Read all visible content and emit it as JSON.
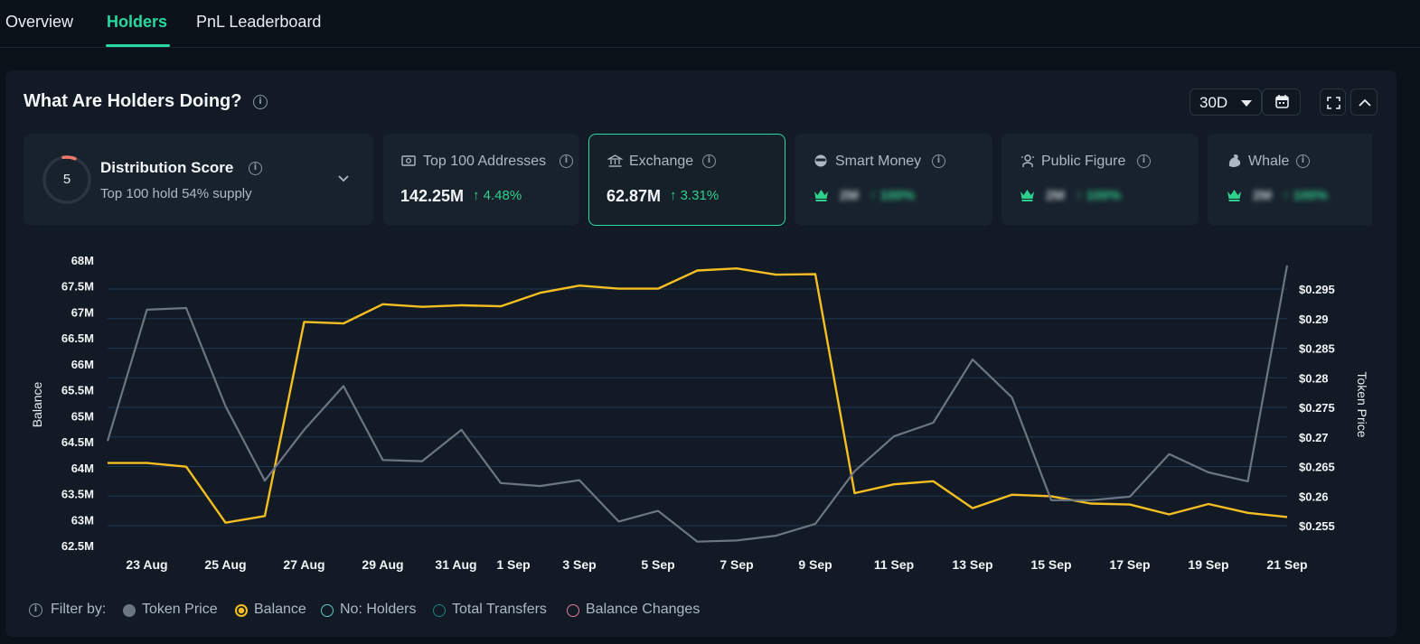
{
  "tabs": [
    {
      "label": "Overview",
      "active": false
    },
    {
      "label": "Holders",
      "active": true
    },
    {
      "label": "PnL Leaderboard",
      "active": false
    }
  ],
  "header": {
    "title": "What Are Holders Doing?",
    "range": "30D"
  },
  "distribution": {
    "score": "5",
    "title": "Distribution Score",
    "subtitle": "Top 100 hold 54% supply"
  },
  "cards": [
    {
      "label": "Top 100 Addresses",
      "value": "142.25M",
      "change": "4.48%",
      "icon": "money-icon"
    },
    {
      "label": "Exchange",
      "value": "62.87M",
      "change": "3.31%",
      "icon": "bank-icon",
      "selected": true
    },
    {
      "label": "Smart Money",
      "value": "2M",
      "change": "100%",
      "icon": "sunglasses-icon",
      "locked": true
    },
    {
      "label": "Public Figure",
      "value": "2M",
      "change": "100%",
      "icon": "figure-icon",
      "locked": true
    },
    {
      "label": "Whale",
      "value": "2M",
      "change": "100%",
      "icon": "whale-icon",
      "locked": true
    }
  ],
  "chart_data": {
    "type": "line",
    "x": [
      "22 Aug",
      "23 Aug",
      "24 Aug",
      "25 Aug",
      "26 Aug",
      "27 Aug",
      "28 Aug",
      "29 Aug",
      "30 Aug",
      "31 Aug",
      "1 Sep",
      "2 Sep",
      "3 Sep",
      "4 Sep",
      "5 Sep",
      "6 Sep",
      "7 Sep",
      "8 Sep",
      "9 Sep",
      "10 Sep",
      "11 Sep",
      "12 Sep",
      "13 Sep",
      "14 Sep",
      "15 Sep",
      "16 Sep",
      "17 Sep",
      "18 Sep",
      "19 Sep",
      "20 Sep",
      "21 Sep"
    ],
    "xticks": [
      "23 Aug",
      "25 Aug",
      "27 Aug",
      "29 Aug",
      "31 Aug",
      "1 Sep",
      "3 Sep",
      "5 Sep",
      "7 Sep",
      "9 Sep",
      "11 Sep",
      "13 Sep",
      "15 Sep",
      "17 Sep",
      "19 Sep",
      "21 Sep"
    ],
    "series": [
      {
        "name": "Balance",
        "axis": "left",
        "color": "#f5be22",
        "values": [
          64.09,
          64.09,
          64.02,
          62.94,
          63.07,
          66.81,
          66.78,
          67.15,
          67.1,
          67.13,
          67.11,
          67.37,
          67.51,
          67.45,
          67.45,
          67.8,
          67.84,
          67.72,
          67.73,
          63.51,
          63.68,
          63.74,
          63.22,
          63.48,
          63.45,
          63.31,
          63.29,
          63.1,
          63.3,
          63.13,
          63.05
        ]
      },
      {
        "name": "Token Price",
        "axis": "right",
        "color": "#6b7682",
        "values": [
          0.2693,
          0.2915,
          0.2918,
          0.2752,
          0.2626,
          0.2712,
          0.2786,
          0.2661,
          0.2659,
          0.2712,
          0.2622,
          0.2617,
          0.2627,
          0.2557,
          0.2575,
          0.2523,
          0.2525,
          0.2533,
          0.2553,
          0.2642,
          0.2701,
          0.2724,
          0.2831,
          0.2767,
          0.2593,
          0.2593,
          0.2599,
          0.2671,
          0.264,
          0.2625,
          0.299
        ]
      }
    ],
    "ylabel": "Balance",
    "y2label": "Token Price",
    "ylim": [
      62.5,
      68
    ],
    "y2lim": [
      0.2533,
      0.299
    ],
    "yticks": [
      "68M",
      "67.5M",
      "67M",
      "66.5M",
      "66M",
      "65.5M",
      "65M",
      "64.5M",
      "64M",
      "63.5M",
      "63M",
      "62.5M"
    ],
    "y2ticks": [
      "$0.295",
      "$0.29",
      "$0.285",
      "$0.28",
      "$0.275",
      "$0.27",
      "$0.265",
      "$0.26",
      "$0.255"
    ],
    "grid": true
  },
  "legend": {
    "prefix": "Filter by:",
    "items": [
      {
        "label": "Token Price",
        "color": "#6b7682",
        "style": "filled"
      },
      {
        "label": "Balance",
        "color": "#f5be22",
        "style": "ring"
      },
      {
        "label": "No: Holders",
        "color": "#5ec8c0",
        "style": "outline"
      },
      {
        "label": "Total Transfers",
        "color": "#1f7f83",
        "style": "outline"
      },
      {
        "label": "Balance Changes",
        "color": "#e07aa0",
        "style": "outline"
      }
    ]
  }
}
